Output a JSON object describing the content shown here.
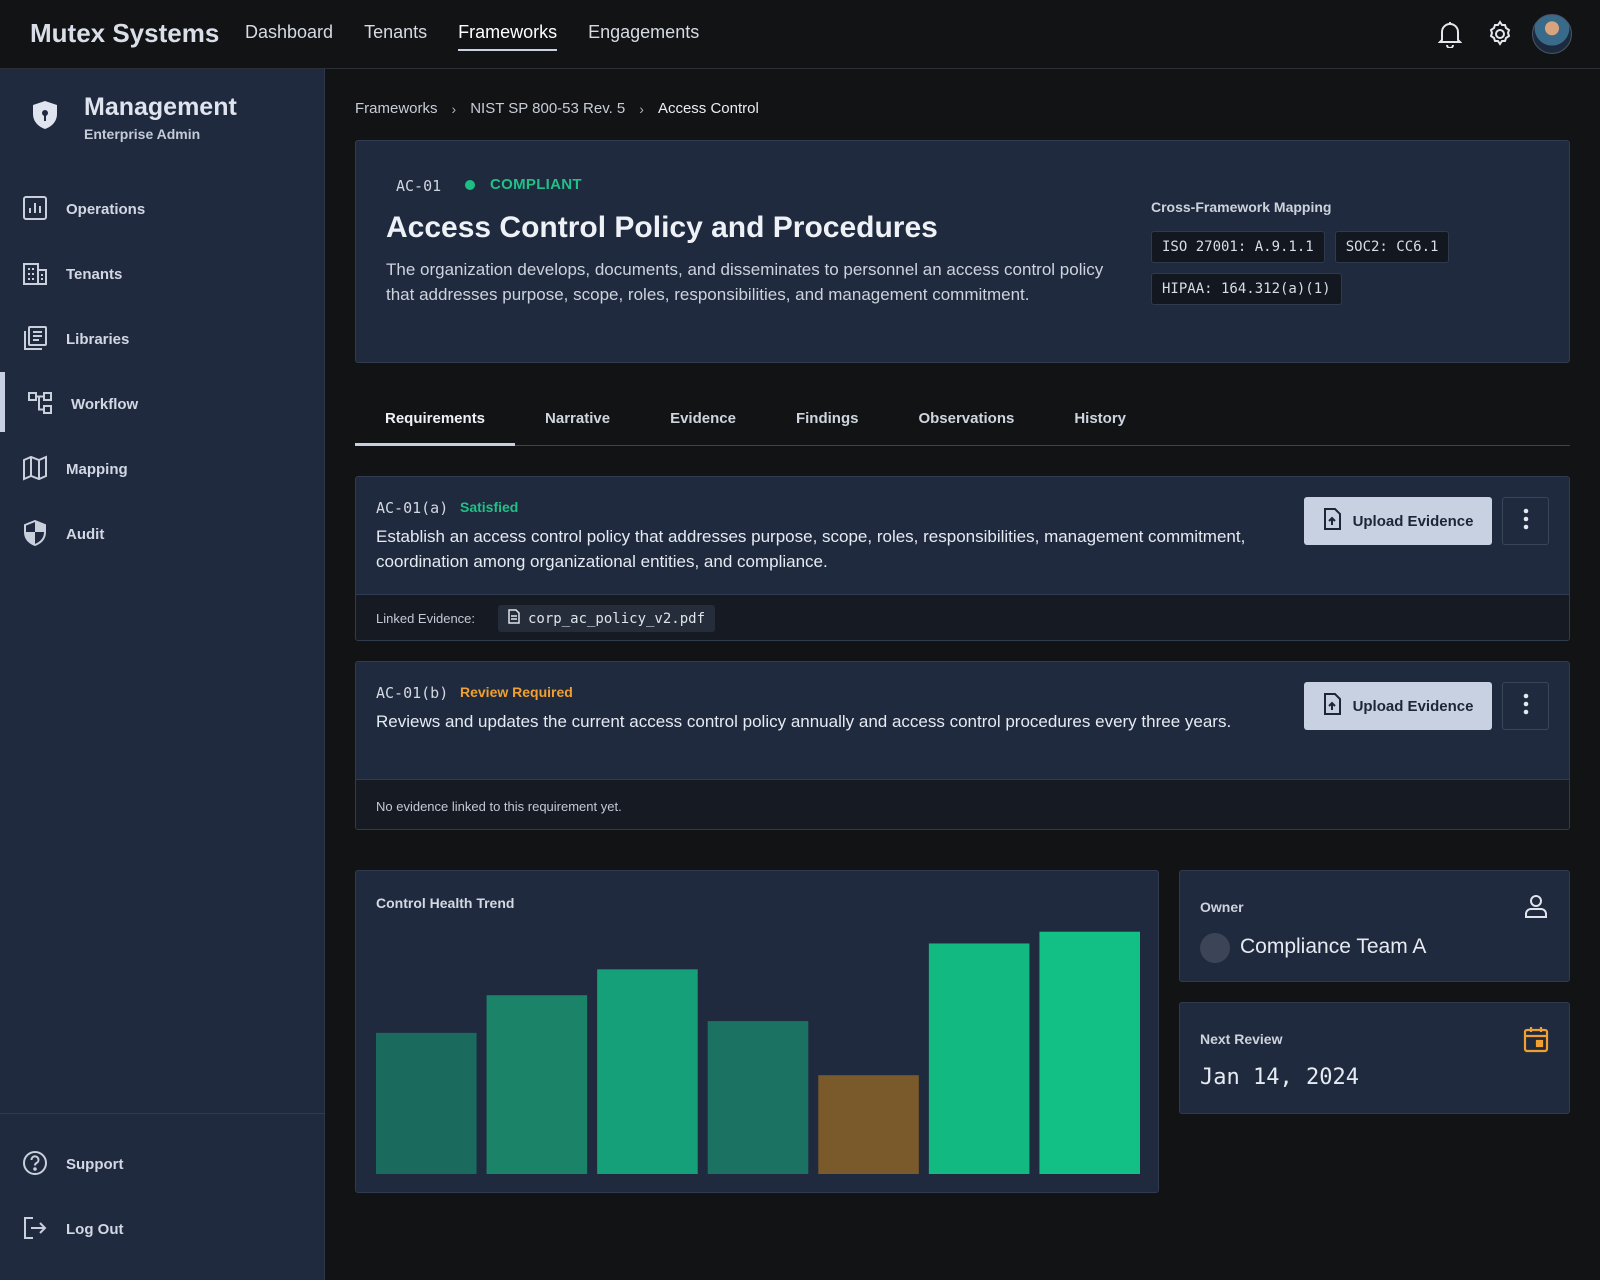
{
  "brand": "Mutex Systems",
  "top_nav": [
    {
      "label": "Dashboard"
    },
    {
      "label": "Tenants"
    },
    {
      "label": "Frameworks"
    },
    {
      "label": "Engagements"
    }
  ],
  "sidebar": {
    "title": "Management",
    "subtitle": "Enterprise Admin",
    "items": [
      {
        "label": "Operations",
        "icon": "operations-icon"
      },
      {
        "label": "Tenants",
        "icon": "building-icon"
      },
      {
        "label": "Libraries",
        "icon": "library-icon"
      },
      {
        "label": "Workflow",
        "icon": "workflow-icon"
      },
      {
        "label": "Mapping",
        "icon": "map-icon"
      },
      {
        "label": "Audit",
        "icon": "shield-icon"
      }
    ],
    "bottom_items": [
      {
        "label": "Support",
        "icon": "help-icon"
      },
      {
        "label": "Log Out",
        "icon": "logout-icon"
      }
    ]
  },
  "breadcrumb": [
    "Frameworks",
    "NIST SP 800-53 Rev. 5",
    "Access Control"
  ],
  "control": {
    "id": "AC-01",
    "status": "COMPLIANT",
    "title": "Access Control Policy and Procedures",
    "description": "The organization develops, documents, and disseminates to personnel an access control policy that addresses purpose, scope, roles, responsibilities, and management commitment.",
    "mapping_title": "Cross-Framework Mapping",
    "mappings": [
      "ISO 27001: A.9.1.1",
      "SOC2: CC6.1",
      "HIPAA: 164.312(a)(1)"
    ]
  },
  "tabs": [
    "Requirements",
    "Narrative",
    "Evidence",
    "Findings",
    "Observations",
    "History"
  ],
  "requirements": [
    {
      "id": "AC-01(a)",
      "status": "Satisfied",
      "text": "Establish an access control policy that addresses purpose, scope, roles, responsibilities, management commitment, coordination among organizational entities, and compliance.",
      "upload_label": "Upload Evidence",
      "linked_label": "Linked Evidence:",
      "linked_file": "corp_ac_policy_v2.pdf"
    },
    {
      "id": "AC-01(b)",
      "status": "Review Required",
      "text": "Reviews and updates the current access control policy annually and access control procedures every three years.",
      "upload_label": "Upload Evidence",
      "empty_text": "No evidence linked to this requirement yet."
    }
  ],
  "trend": {
    "title": "Control Health Trend"
  },
  "chart_data": {
    "type": "bar",
    "title": "Control Health Trend",
    "categories": [
      "",
      "",
      "",
      "",
      "",
      "",
      ""
    ],
    "values": [
      60,
      76,
      87,
      65,
      42,
      98,
      103
    ],
    "colors": [
      "#1a6a5d",
      "#1b8468",
      "#16a07a",
      "#1c7262",
      "#7a5a2a",
      "#12b981",
      "#12bf84"
    ],
    "ylim": [
      0,
      105
    ]
  },
  "owner": {
    "label": "Owner",
    "name": "Compliance Team A"
  },
  "review": {
    "label": "Next Review",
    "date": "Jan 14, 2024"
  },
  "colors": {
    "accent": "#c8d1e2",
    "success": "#21c086",
    "warning": "#f0a030",
    "panel": "#1f2a3e"
  }
}
